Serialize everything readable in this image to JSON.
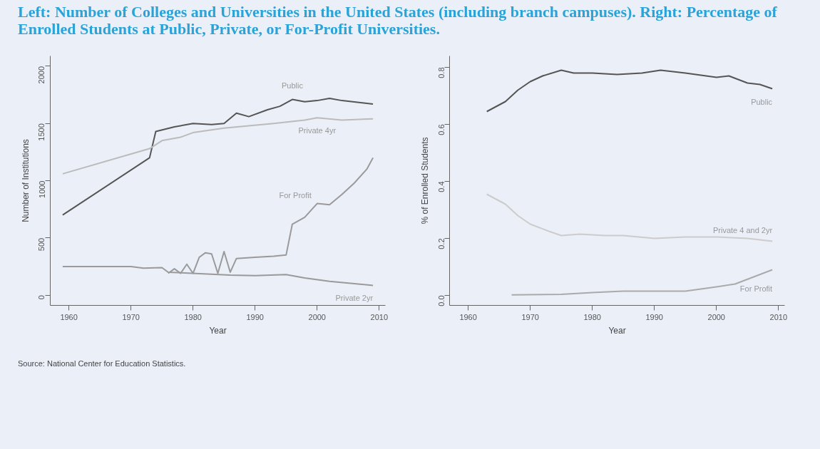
{
  "chart_data": [
    {
      "type": "line",
      "title": "Left: Number of Colleges and Universities in the United States (including branch campuses). Right: Percentage of Enrolled Students at Public, Private, or For-Profit Universities.",
      "xlabel": "Year",
      "ylabel": "Number of Institutions",
      "xlim": [
        1957,
        2011
      ],
      "ylim": [
        -90,
        2090
      ],
      "xticks": [
        1960,
        1970,
        1980,
        1990,
        2000,
        2010
      ],
      "yticks": [
        0,
        500,
        1000,
        1500,
        2000
      ],
      "grid": false,
      "annotations": [
        "Source: National Center for Education Statistics."
      ],
      "series": [
        {
          "name": "Public",
          "color": "#555555",
          "x": [
            1959,
            1973,
            1974,
            1977,
            1980,
            1983,
            1985,
            1987,
            1989,
            1992,
            1994,
            1996,
            1998,
            2000,
            2002,
            2004,
            2009
          ],
          "values": [
            700,
            1200,
            1430,
            1470,
            1500,
            1490,
            1500,
            1590,
            1560,
            1620,
            1650,
            1710,
            1690,
            1700,
            1720,
            1700,
            1670
          ]
        },
        {
          "name": "Private 4yr",
          "color": "#bbbbbb",
          "x": [
            1959,
            1973,
            1975,
            1978,
            1980,
            1985,
            1989,
            1993,
            1998,
            2000,
            2004,
            2009
          ],
          "values": [
            1060,
            1280,
            1350,
            1380,
            1420,
            1460,
            1480,
            1500,
            1530,
            1550,
            1530,
            1540
          ]
        },
        {
          "name": "For Profit",
          "color": "#9a9a9a",
          "x": [
            1976,
            1977,
            1978,
            1979,
            1980,
            1981,
            1982,
            1983,
            1984,
            1985,
            1986,
            1987,
            1990,
            1993,
            1995,
            1996,
            1998,
            2000,
            2002,
            2004,
            2006,
            2008,
            2009
          ],
          "values": [
            190,
            230,
            190,
            270,
            190,
            330,
            370,
            360,
            190,
            380,
            200,
            320,
            330,
            340,
            350,
            620,
            680,
            800,
            790,
            880,
            980,
            1100,
            1200
          ]
        },
        {
          "name": "Private 2yr",
          "color": "#9a9a9a",
          "x": [
            1959,
            1970,
            1972,
            1975,
            1976,
            1986,
            1990,
            1995,
            1998,
            2002,
            2006,
            2009
          ],
          "values": [
            250,
            250,
            235,
            240,
            200,
            175,
            170,
            180,
            150,
            120,
            100,
            85
          ]
        }
      ]
    },
    {
      "type": "line",
      "xlabel": "Year",
      "ylabel": "% of Enrolled Students",
      "xlim": [
        1957,
        2011
      ],
      "ylim": [
        -0.035,
        0.84
      ],
      "xticks": [
        1960,
        1970,
        1980,
        1990,
        2000,
        2010
      ],
      "yticks": [
        {
          "value": 0,
          "label": "0.0"
        },
        0.2,
        0.4,
        0.6,
        0.8
      ],
      "grid": false,
      "series": [
        {
          "name": "Public",
          "color": "#555555",
          "x": [
            1963,
            1966,
            1968,
            1970,
            1972,
            1975,
            1977,
            1980,
            1984,
            1988,
            1991,
            1995,
            2000,
            2002,
            2005,
            2007,
            2009
          ],
          "values": [
            0.645,
            0.68,
            0.72,
            0.75,
            0.77,
            0.79,
            0.78,
            0.78,
            0.775,
            0.78,
            0.79,
            0.78,
            0.765,
            0.77,
            0.745,
            0.74,
            0.725
          ]
        },
        {
          "name": "Private 4 and 2yr",
          "color": "#cccccc",
          "x": [
            1963,
            1966,
            1968,
            1970,
            1973,
            1975,
            1978,
            1982,
            1985,
            1990,
            1995,
            2000,
            2005,
            2009
          ],
          "values": [
            0.355,
            0.32,
            0.28,
            0.25,
            0.225,
            0.21,
            0.215,
            0.21,
            0.21,
            0.2,
            0.205,
            0.205,
            0.2,
            0.19
          ]
        },
        {
          "name": "For Profit",
          "color": "#aaaaaa",
          "x": [
            1967,
            1975,
            1980,
            1985,
            1995,
            2000,
            2003,
            2006,
            2009
          ],
          "values": [
            0.002,
            0.004,
            0.01,
            0.015,
            0.015,
            0.03,
            0.04,
            0.065,
            0.09
          ]
        }
      ]
    }
  ]
}
